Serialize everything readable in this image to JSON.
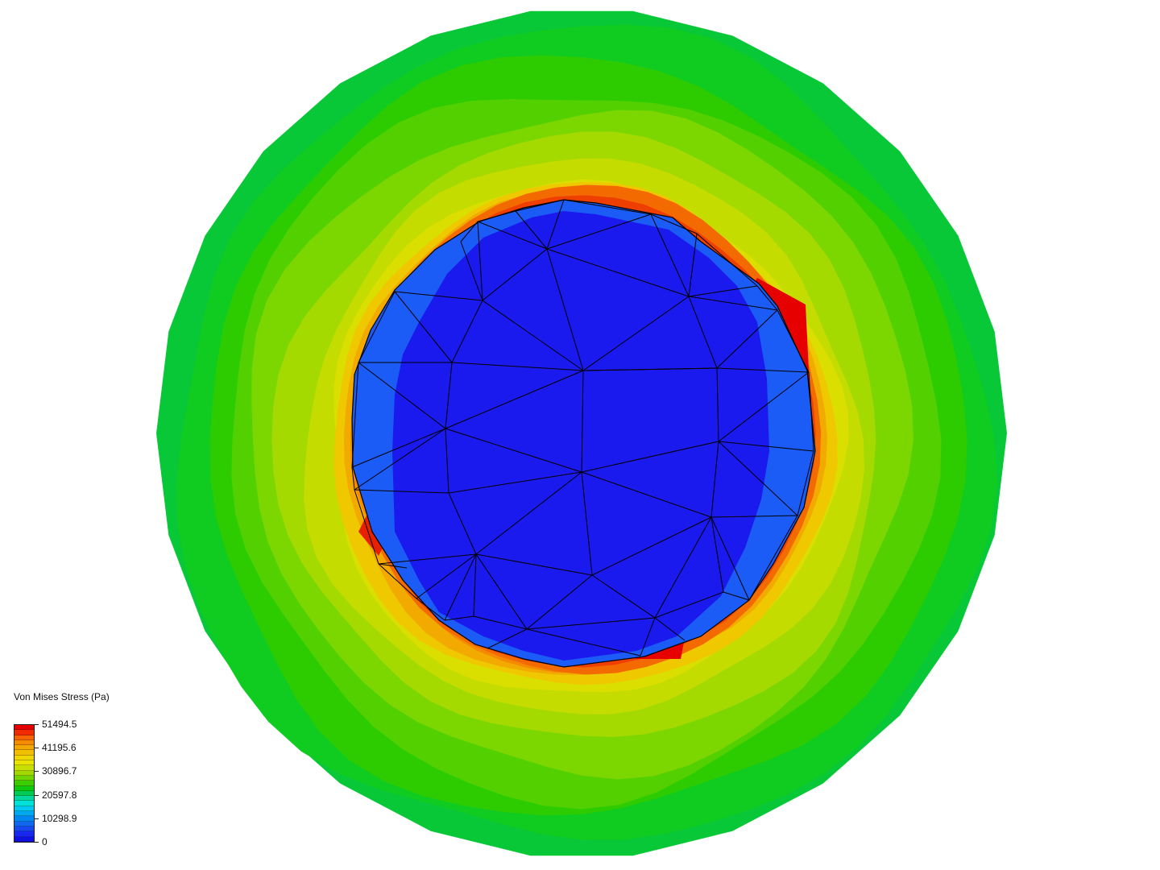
{
  "legend": {
    "title": "Von Mises Stress (Pa)",
    "ticks": [
      "51494.5",
      "41195.6",
      "30896.7",
      "20597.8",
      "10298.9",
      "0"
    ],
    "min": 0,
    "max": 51494.5,
    "colors": [
      "#e60000",
      "#f22a00",
      "#f56400",
      "#f58c00",
      "#f2a800",
      "#f0c000",
      "#efd800",
      "#e8e400",
      "#c8e000",
      "#a0d800",
      "#70d400",
      "#3ccc00",
      "#10c810",
      "#00cc55",
      "#00d8a0",
      "#00e0d8",
      "#00c8f0",
      "#00a8f0",
      "#0088f0",
      "#1068f0",
      "#1848f0",
      "#1828f0",
      "#1010e0"
    ]
  },
  "model": {
    "bands": [
      {
        "level": 1.0,
        "color": "#f0e000"
      },
      {
        "level": 0.93,
        "color": "#e2e000"
      },
      {
        "level": 0.86,
        "color": "#c6dc00"
      },
      {
        "level": 0.78,
        "color": "#96d800"
      },
      {
        "level": 0.7,
        "color": "#5ed200"
      },
      {
        "level": 0.62,
        "color": "#2cca00"
      },
      {
        "level": 0.55,
        "color": "#0cc820"
      }
    ],
    "hole_colors": [
      "#1a1aee",
      "#1a5cf5"
    ],
    "hot_colors": [
      "#e60000",
      "#f24a00",
      "#f57800",
      "#f2a000",
      "#eec200",
      "#e8d800"
    ],
    "mesh_color": "#000000"
  }
}
